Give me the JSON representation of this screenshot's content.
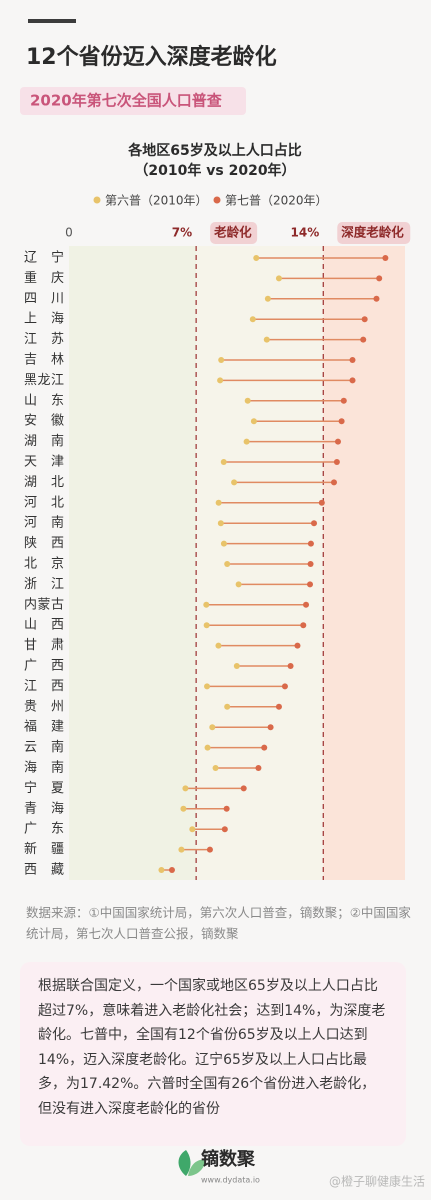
{
  "header": {
    "title": "12个省份迈入深度老龄化",
    "subtitle": "2020年第七次全国人口普查"
  },
  "chart_data": {
    "type": "dumbbell",
    "title": "各地区65岁及以上人口占比",
    "subtitle": "（2010年 vs 2020年）",
    "categories": [
      "辽宁",
      "重庆",
      "四川",
      "上海",
      "江苏",
      "吉林",
      "黑龙江",
      "山东",
      "安徽",
      "湖南",
      "天津",
      "湖北",
      "河北",
      "河南",
      "陕西",
      "北京",
      "浙江",
      "内蒙古",
      "山西",
      "甘肃",
      "广西",
      "江西",
      "贵州",
      "福建",
      "云南",
      "海南",
      "宁夏",
      "青海",
      "广东",
      "新疆",
      "西藏"
    ],
    "series": [
      {
        "name": "第六普（2010年）",
        "color": "#e8c36a",
        "values": [
          10.31,
          11.56,
          10.95,
          10.12,
          10.89,
          8.38,
          8.32,
          9.84,
          10.18,
          9.78,
          8.52,
          9.09,
          8.24,
          8.36,
          8.53,
          8.71,
          9.34,
          7.56,
          7.58,
          8.23,
          9.24,
          7.6,
          8.71,
          7.89,
          7.63,
          8.07,
          6.41,
          6.3,
          6.79,
          6.19,
          5.09
        ]
      },
      {
        "name": "第七普（2020年）",
        "color": "#d9694a",
        "values": [
          17.42,
          17.08,
          16.93,
          16.28,
          16.2,
          15.61,
          15.61,
          15.13,
          15.01,
          14.81,
          14.75,
          14.59,
          13.92,
          13.49,
          13.32,
          13.3,
          13.27,
          13.05,
          12.9,
          12.58,
          12.2,
          11.89,
          11.56,
          11.1,
          10.75,
          10.43,
          9.62,
          8.68,
          8.58,
          7.76,
          5.67
        ]
      }
    ],
    "line_color": "#e08a62",
    "xlim": [
      0,
      18.5
    ],
    "xticks": [
      0,
      {
        "value": 7,
        "label": "7%"
      },
      {
        "value": 14,
        "label": "14%"
      }
    ],
    "annotations": [
      {
        "x": 7,
        "text": "老龄化"
      },
      {
        "x": 14,
        "text": "深度老龄化"
      }
    ],
    "zone_colors": [
      "#f0f2e4",
      "#f6f4ea",
      "#fbe4d9"
    ],
    "legend": "top"
  },
  "source": "数据来源：①中国国家统计局，第六次人口普查，镝数聚；②中国国家统计局，第七次人口普查公报，镝数聚",
  "description": "根据联合国定义，一个国家或地区65岁及以上人口占比超过7%，意味着进入老龄化社会；达到14%，为深度老龄化。七普中，全国有12个省份65岁及以上人口达到14%，迈入深度老龄化。辽宁65岁及以上人口占比最多，为17.42%。六普时全国有26个省份进入老龄化，但没有进入深度老龄化的省份",
  "footer": {
    "brand": "镝数聚",
    "url": "www.dydata.io",
    "watermark": "@橙子聊健康生活"
  }
}
